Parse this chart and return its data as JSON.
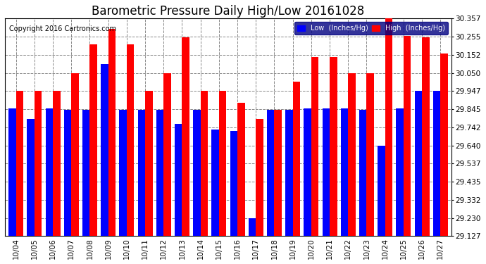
{
  "title": "Barometric Pressure Daily High/Low 20161028",
  "copyright": "Copyright 2016 Cartronics.com",
  "dates": [
    "10/04",
    "10/05",
    "10/06",
    "10/07",
    "10/08",
    "10/09",
    "10/10",
    "10/11",
    "10/12",
    "10/13",
    "10/14",
    "10/15",
    "10/16",
    "10/17",
    "10/18",
    "10/19",
    "10/20",
    "10/21",
    "10/22",
    "10/23",
    "10/24",
    "10/25",
    "10/26",
    "10/27"
  ],
  "low_values": [
    29.85,
    29.79,
    29.85,
    29.84,
    29.84,
    30.1,
    29.84,
    29.84,
    29.84,
    29.76,
    29.84,
    29.73,
    29.72,
    29.23,
    29.84,
    29.84,
    29.85,
    29.85,
    29.85,
    29.84,
    29.64,
    29.85,
    29.95,
    29.95
  ],
  "high_values": [
    29.95,
    29.95,
    29.95,
    30.05,
    30.21,
    30.3,
    30.21,
    29.95,
    30.05,
    30.25,
    29.95,
    29.95,
    29.88,
    29.79,
    29.84,
    30.0,
    30.14,
    30.14,
    30.05,
    30.05,
    30.36,
    30.26,
    30.25,
    30.16
  ],
  "low_color": "#0000ff",
  "high_color": "#ff0000",
  "bg_color": "#ffffff",
  "grid_color": "#aaaaaa",
  "ylim_min": 29.127,
  "ylim_max": 30.357,
  "yticks": [
    29.127,
    29.23,
    29.332,
    29.435,
    29.537,
    29.64,
    29.742,
    29.845,
    29.947,
    30.05,
    30.152,
    30.255,
    30.357
  ],
  "title_fontsize": 12,
  "copyright_fontsize": 7,
  "legend_low_label": "Low  (Inches/Hg)",
  "legend_high_label": "High  (Inches/Hg)",
  "bar_width": 0.4
}
